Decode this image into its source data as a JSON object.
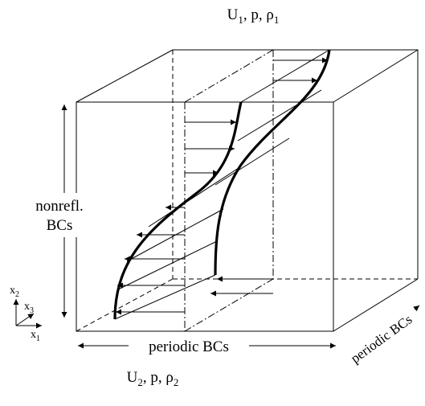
{
  "labels": {
    "top": {
      "u": "U",
      "u_sub": "1",
      "mid": ", p, ρ",
      "rho_sub": "1"
    },
    "bottom": {
      "u": "U",
      "u_sub": "2",
      "mid": ", p,  ρ",
      "rho_sub": "2"
    },
    "left": [
      "nonrefl.",
      "BCs"
    ],
    "bottom_bc": "periodic BCs",
    "right_bc": "periodic BCs"
  },
  "axes": {
    "x1": {
      "name": "x",
      "sub": "1"
    },
    "x2": {
      "name": "x",
      "sub": "2"
    },
    "x3": {
      "name": "x",
      "sub": "3"
    }
  }
}
